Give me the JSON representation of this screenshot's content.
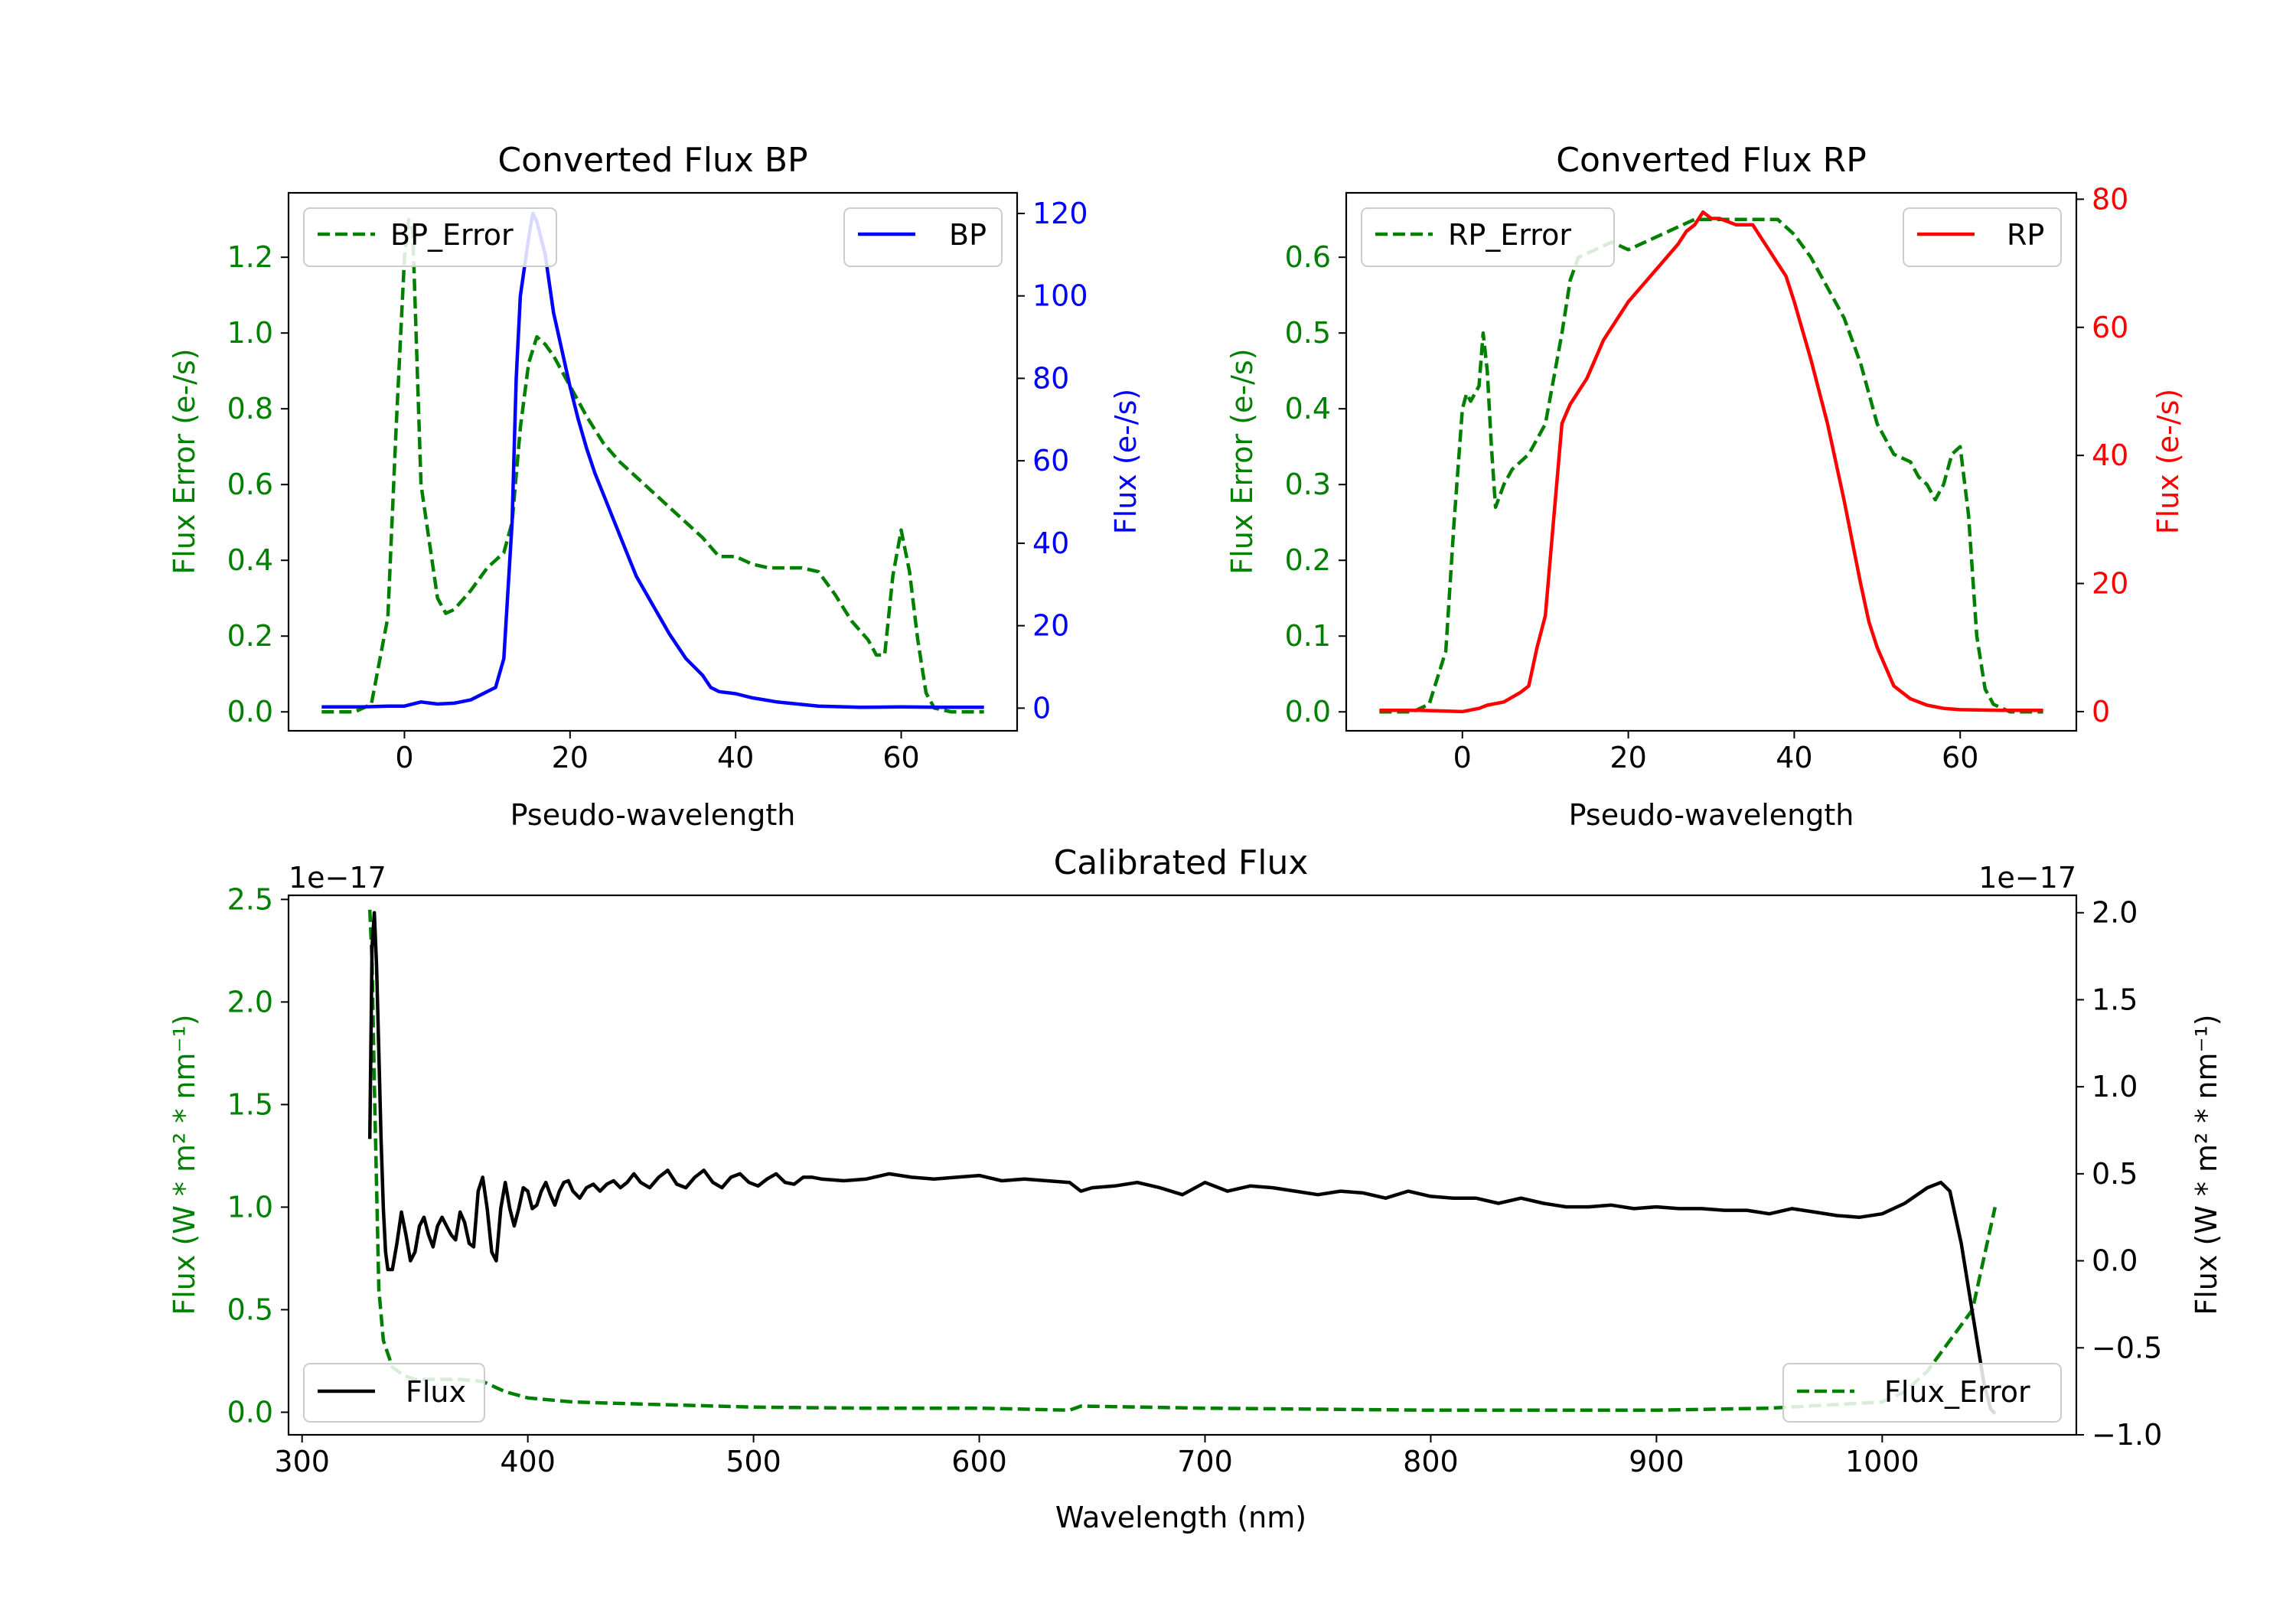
{
  "colors": {
    "error": "#008000",
    "bp": "#0000ff",
    "rp": "#ff0000",
    "flux": "#000000",
    "axis": "#000000"
  },
  "chart_data": [
    {
      "id": "bp",
      "type": "line",
      "title": "Converted Flux BP",
      "xlabel": "Pseudo-wavelength",
      "xlim": [
        -14,
        74
      ],
      "xticks": [
        {
          "v": 0,
          "label": "0"
        },
        {
          "v": 20,
          "label": "20"
        },
        {
          "v": 40,
          "label": "40"
        },
        {
          "v": 60,
          "label": "60"
        }
      ],
      "left_axis": {
        "label": "Flux Error (e-/s)",
        "lim": [
          -0.05,
          1.37
        ],
        "ticks": [
          {
            "v": 0.0,
            "label": "0.0"
          },
          {
            "v": 0.2,
            "label": "0.2"
          },
          {
            "v": 0.4,
            "label": "0.4"
          },
          {
            "v": 0.6,
            "label": "0.6"
          },
          {
            "v": 0.8,
            "label": "0.8"
          },
          {
            "v": 1.0,
            "label": "1.0"
          },
          {
            "v": 1.2,
            "label": "1.2"
          }
        ]
      },
      "right_axis": {
        "label": "Flux (e-/s)",
        "lim": [
          -5.5,
          125
        ],
        "ticks": [
          {
            "v": 0,
            "label": "0"
          },
          {
            "v": 20,
            "label": "20"
          },
          {
            "v": 40,
            "label": "40"
          },
          {
            "v": 60,
            "label": "60"
          },
          {
            "v": 80,
            "label": "80"
          },
          {
            "v": 100,
            "label": "100"
          },
          {
            "v": 120,
            "label": "120"
          }
        ]
      },
      "legend_left": {
        "label": "BP_Error",
        "placement": "upper left"
      },
      "legend_right": {
        "label": "BP",
        "placement": "upper right"
      },
      "series": [
        {
          "name": "BP_Error",
          "axis": "left",
          "style": "dashed",
          "color_key": "error",
          "x": [
            -10,
            -6,
            -4,
            -2,
            -1,
            0,
            0.5,
            1,
            2,
            3,
            4,
            5,
            6,
            8,
            10,
            12,
            13,
            14,
            15,
            16,
            17,
            18,
            20,
            22,
            24,
            26,
            28,
            30,
            32,
            34,
            36,
            38,
            40,
            42,
            44,
            46,
            48,
            50,
            52,
            54,
            56,
            57,
            58,
            59,
            60,
            61,
            62,
            63,
            64,
            66,
            68,
            70
          ],
          "values": [
            0.0,
            0.0,
            0.02,
            0.25,
            0.75,
            1.2,
            1.3,
            1.27,
            0.6,
            0.45,
            0.3,
            0.26,
            0.27,
            0.32,
            0.38,
            0.42,
            0.5,
            0.75,
            0.92,
            0.99,
            0.97,
            0.94,
            0.86,
            0.78,
            0.71,
            0.66,
            0.62,
            0.58,
            0.54,
            0.5,
            0.46,
            0.41,
            0.41,
            0.39,
            0.38,
            0.38,
            0.38,
            0.37,
            0.31,
            0.24,
            0.19,
            0.15,
            0.15,
            0.36,
            0.48,
            0.37,
            0.19,
            0.05,
            0.01,
            0.0,
            0.0,
            0.0
          ]
        },
        {
          "name": "BP",
          "axis": "right",
          "style": "solid",
          "color_key": "bp",
          "x": [
            -10,
            -5,
            -2,
            0,
            2,
            4,
            6,
            8,
            10,
            11,
            12,
            13,
            13.5,
            14,
            15,
            15.5,
            16,
            17,
            18,
            19,
            20,
            21,
            22,
            23,
            24,
            25,
            26,
            27,
            28,
            30,
            32,
            34,
            36,
            37,
            38,
            40,
            42,
            45,
            50,
            55,
            60,
            65,
            70
          ],
          "values": [
            0.3,
            0.3,
            0.5,
            0.5,
            1.5,
            1.0,
            1.2,
            2.0,
            4.0,
            5.0,
            12.0,
            45.0,
            80.0,
            100.0,
            114.0,
            120.0,
            118.0,
            110.0,
            96.0,
            87.0,
            78.0,
            70.0,
            63.0,
            57.0,
            52.0,
            47.0,
            42.0,
            37.0,
            32.0,
            25.0,
            18.0,
            12.0,
            8.0,
            5.0,
            4.0,
            3.5,
            2.5,
            1.5,
            0.5,
            0.2,
            0.3,
            0.2,
            0.2
          ]
        }
      ]
    },
    {
      "id": "rp",
      "type": "line",
      "title": "Converted Flux RP",
      "xlabel": "Pseudo-wavelength",
      "xlim": [
        -14,
        74
      ],
      "xticks": [
        {
          "v": 0,
          "label": "0"
        },
        {
          "v": 20,
          "label": "20"
        },
        {
          "v": 40,
          "label": "40"
        },
        {
          "v": 60,
          "label": "60"
        }
      ],
      "left_axis": {
        "label": "Flux Error (e-/s)",
        "lim": [
          -0.025,
          0.685
        ],
        "ticks": [
          {
            "v": 0.0,
            "label": "0.0"
          },
          {
            "v": 0.1,
            "label": "0.1"
          },
          {
            "v": 0.2,
            "label": "0.2"
          },
          {
            "v": 0.3,
            "label": "0.3"
          },
          {
            "v": 0.4,
            "label": "0.4"
          },
          {
            "v": 0.5,
            "label": "0.5"
          },
          {
            "v": 0.6,
            "label": "0.6"
          }
        ]
      },
      "right_axis": {
        "label": "Flux (e-/s)",
        "lim": [
          -3.0,
          81.0
        ],
        "ticks": [
          {
            "v": 0,
            "label": "0"
          },
          {
            "v": 20,
            "label": "20"
          },
          {
            "v": 40,
            "label": "40"
          },
          {
            "v": 60,
            "label": "60"
          },
          {
            "v": 80,
            "label": "80"
          }
        ]
      },
      "legend_left": {
        "label": "RP_Error",
        "placement": "upper left"
      },
      "legend_right": {
        "label": "RP",
        "placement": "upper right"
      },
      "series": [
        {
          "name": "RP_Error",
          "axis": "left",
          "style": "dashed",
          "color_key": "error",
          "x": [
            -10,
            -6,
            -4,
            -2,
            -1,
            0,
            0.5,
            1,
            2,
            2.5,
            3,
            3.5,
            4,
            5,
            6,
            8,
            10,
            12,
            13,
            14,
            16,
            18,
            20,
            22,
            24,
            26,
            28,
            30,
            32,
            34,
            36,
            38,
            40,
            42,
            44,
            46,
            48,
            50,
            52,
            54,
            55,
            56,
            57,
            58,
            59,
            60,
            61,
            62,
            63,
            64,
            66,
            70
          ],
          "values": [
            0.0,
            0.0,
            0.01,
            0.08,
            0.25,
            0.4,
            0.42,
            0.41,
            0.43,
            0.5,
            0.45,
            0.35,
            0.27,
            0.3,
            0.32,
            0.34,
            0.38,
            0.5,
            0.57,
            0.6,
            0.61,
            0.62,
            0.61,
            0.62,
            0.63,
            0.64,
            0.65,
            0.65,
            0.65,
            0.65,
            0.65,
            0.65,
            0.63,
            0.6,
            0.56,
            0.52,
            0.46,
            0.38,
            0.34,
            0.33,
            0.31,
            0.3,
            0.28,
            0.3,
            0.34,
            0.35,
            0.26,
            0.1,
            0.03,
            0.01,
            0.0,
            0.0
          ]
        },
        {
          "name": "RP",
          "axis": "right",
          "style": "solid",
          "color_key": "rp",
          "x": [
            -10,
            -5,
            0,
            2,
            3,
            5,
            7,
            8,
            9,
            10,
            11,
            12,
            13,
            15,
            17,
            19,
            20,
            22,
            24,
            26,
            27,
            28,
            29,
            30,
            31,
            33,
            35,
            36,
            37,
            38,
            39,
            40,
            42,
            44,
            46,
            48,
            49,
            50,
            52,
            54,
            56,
            58,
            60,
            65,
            70
          ],
          "values": [
            0.2,
            0.2,
            0.0,
            0.5,
            1.0,
            1.5,
            3.0,
            4.0,
            10.0,
            15.0,
            30.0,
            45.0,
            48.0,
            52.0,
            58.0,
            62.0,
            64.0,
            67.0,
            70.0,
            73.0,
            75.0,
            76.0,
            78.0,
            77.0,
            77.0,
            76.0,
            76.0,
            74.0,
            72.0,
            70.0,
            68.0,
            64.0,
            55.0,
            45.0,
            33.0,
            20.0,
            14.0,
            10.0,
            4.0,
            2.0,
            1.0,
            0.5,
            0.3,
            0.2,
            0.2
          ]
        }
      ]
    },
    {
      "id": "cal",
      "type": "line",
      "title": "Calibrated Flux",
      "xlabel": "Wavelength (nm)",
      "xlim": [
        294,
        1086
      ],
      "xticks": [
        {
          "v": 300,
          "label": "300"
        },
        {
          "v": 400,
          "label": "400"
        },
        {
          "v": 500,
          "label": "500"
        },
        {
          "v": 600,
          "label": "600"
        },
        {
          "v": 700,
          "label": "700"
        },
        {
          "v": 800,
          "label": "800"
        },
        {
          "v": 900,
          "label": "900"
        },
        {
          "v": 1000,
          "label": "1000"
        }
      ],
      "left_axis": {
        "label": "Flux (W * m² * nm⁻¹)",
        "offset": "1e−17",
        "lim": [
          -0.11,
          2.52
        ],
        "ticks": [
          {
            "v": 0.0,
            "label": "0.0"
          },
          {
            "v": 0.5,
            "label": "0.5"
          },
          {
            "v": 1.0,
            "label": "1.0"
          },
          {
            "v": 1.5,
            "label": "1.5"
          },
          {
            "v": 2.0,
            "label": "2.0"
          },
          {
            "v": 2.5,
            "label": "2.5"
          }
        ]
      },
      "right_axis": {
        "label": "Flux (W * m² * nm⁻¹)",
        "offset": "1e−17",
        "lim": [
          -1.0,
          2.1
        ],
        "ticks": [
          {
            "v": -1.0,
            "label": "−1.0"
          },
          {
            "v": -0.5,
            "label": "−0.5"
          },
          {
            "v": 0.0,
            "label": "0.0"
          },
          {
            "v": 0.5,
            "label": "0.5"
          },
          {
            "v": 1.0,
            "label": "1.0"
          },
          {
            "v": 1.5,
            "label": "1.5"
          },
          {
            "v": 2.0,
            "label": "2.0"
          }
        ]
      },
      "legend_left": {
        "label": "Flux",
        "placement": "lower left"
      },
      "legend_right": {
        "label": "Flux_Error",
        "placement": "lower right"
      },
      "series": [
        {
          "name": "Flux_Error",
          "axis": "left",
          "style": "dashed",
          "color_key": "error",
          "x": [
            330,
            331,
            332,
            334,
            336,
            340,
            345,
            350,
            360,
            370,
            380,
            390,
            400,
            420,
            450,
            500,
            550,
            600,
            640,
            645,
            700,
            800,
            900,
            950,
            1000,
            1010,
            1020,
            1030,
            1040,
            1050
          ],
          "values": [
            2.45,
            2.2,
            1.6,
            0.6,
            0.35,
            0.22,
            0.18,
            0.16,
            0.16,
            0.16,
            0.15,
            0.1,
            0.07,
            0.05,
            0.04,
            0.025,
            0.02,
            0.02,
            0.01,
            0.03,
            0.02,
            0.01,
            0.01,
            0.02,
            0.05,
            0.1,
            0.2,
            0.35,
            0.5,
            1.0
          ]
        },
        {
          "name": "Flux",
          "axis": "right",
          "style": "solid",
          "color_key": "flux",
          "x": [
            330,
            331,
            332,
            333,
            334,
            335,
            336,
            337,
            338,
            339,
            340,
            342,
            344,
            346,
            348,
            350,
            352,
            354,
            356,
            358,
            360,
            362,
            364,
            366,
            368,
            370,
            372,
            374,
            376,
            378,
            380,
            382,
            384,
            386,
            388,
            390,
            392,
            394,
            396,
            398,
            400,
            402,
            404,
            406,
            408,
            410,
            412,
            414,
            416,
            418,
            420,
            423,
            426,
            429,
            432,
            435,
            438,
            441,
            444,
            447,
            450,
            454,
            458,
            462,
            466,
            470,
            474,
            478,
            482,
            486,
            490,
            494,
            498,
            502,
            506,
            510,
            514,
            518,
            522,
            526,
            530,
            540,
            550,
            560,
            570,
            580,
            590,
            600,
            610,
            620,
            630,
            640,
            645,
            650,
            660,
            670,
            680,
            690,
            700,
            710,
            720,
            730,
            740,
            750,
            760,
            770,
            780,
            790,
            800,
            810,
            820,
            830,
            840,
            850,
            860,
            870,
            880,
            890,
            900,
            910,
            920,
            930,
            940,
            950,
            960,
            970,
            980,
            990,
            1000,
            1010,
            1020,
            1026,
            1030,
            1035,
            1040,
            1045,
            1048,
            1050
          ],
          "values": [
            0.7,
            1.8,
            2.0,
            1.7,
            1.2,
            0.7,
            0.3,
            0.05,
            -0.05,
            -0.05,
            -0.05,
            0.1,
            0.28,
            0.15,
            0.0,
            0.05,
            0.2,
            0.25,
            0.15,
            0.08,
            0.2,
            0.25,
            0.2,
            0.15,
            0.12,
            0.28,
            0.22,
            0.1,
            0.08,
            0.4,
            0.48,
            0.3,
            0.05,
            0.0,
            0.3,
            0.45,
            0.3,
            0.2,
            0.3,
            0.42,
            0.4,
            0.3,
            0.32,
            0.4,
            0.45,
            0.38,
            0.32,
            0.4,
            0.45,
            0.46,
            0.4,
            0.36,
            0.42,
            0.44,
            0.4,
            0.44,
            0.46,
            0.42,
            0.45,
            0.5,
            0.45,
            0.42,
            0.48,
            0.52,
            0.44,
            0.42,
            0.48,
            0.52,
            0.45,
            0.42,
            0.48,
            0.5,
            0.45,
            0.43,
            0.47,
            0.5,
            0.45,
            0.44,
            0.48,
            0.48,
            0.47,
            0.46,
            0.47,
            0.5,
            0.48,
            0.47,
            0.48,
            0.49,
            0.46,
            0.47,
            0.46,
            0.45,
            0.4,
            0.42,
            0.43,
            0.45,
            0.42,
            0.38,
            0.45,
            0.4,
            0.43,
            0.42,
            0.4,
            0.38,
            0.4,
            0.39,
            0.36,
            0.4,
            0.37,
            0.36,
            0.36,
            0.33,
            0.36,
            0.33,
            0.31,
            0.31,
            0.32,
            0.3,
            0.31,
            0.3,
            0.3,
            0.29,
            0.29,
            0.27,
            0.3,
            0.28,
            0.26,
            0.25,
            0.27,
            0.33,
            0.42,
            0.45,
            0.4,
            0.1,
            -0.3,
            -0.7,
            -0.85,
            -0.88
          ]
        }
      ]
    }
  ]
}
